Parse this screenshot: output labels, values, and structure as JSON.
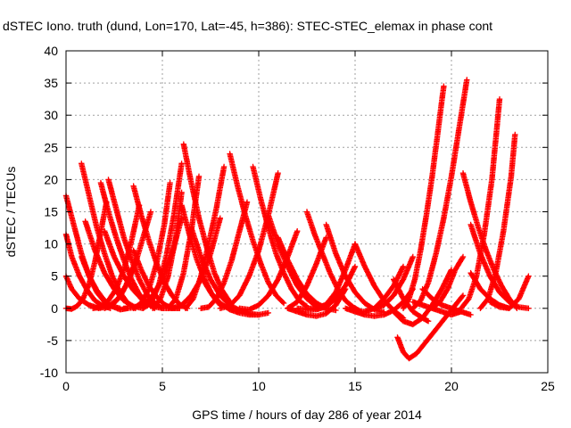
{
  "chart_data": {
    "type": "scatter",
    "title": "dSTEC Iono. truth (dund, Lon=170, Lat=-45, h=386): STEC-STEC_elemax in phase cont",
    "xlabel": "GPS time / hours of day 286 of year 2014",
    "ylabel": "dSTEC  / TECUs",
    "xlim": [
      0,
      25
    ],
    "ylim": [
      -10,
      40
    ],
    "xticks": [
      0,
      5,
      10,
      15,
      20,
      25
    ],
    "yticks": [
      -10,
      -5,
      0,
      5,
      10,
      15,
      20,
      25,
      30,
      35,
      40
    ],
    "grid": true,
    "marker": "+",
    "color": "#ff0000",
    "series": [
      {
        "x": [
          0.0,
          0.4,
          0.8,
          1.2,
          1.6,
          2.0,
          2.4,
          2.8
        ],
        "y": [
          17.5,
          13.0,
          8.5,
          5.0,
          2.5,
          1.0,
          0.3,
          0.0
        ]
      },
      {
        "x": [
          0.0,
          0.3,
          0.7,
          1.1,
          1.5,
          1.9,
          2.3
        ],
        "y": [
          11.5,
          8.0,
          5.0,
          2.8,
          1.2,
          0.4,
          0.0
        ]
      },
      {
        "x": [
          0.0,
          0.3,
          0.6,
          0.9,
          1.2,
          1.5,
          1.8,
          2.1
        ],
        "y": [
          0.0,
          -0.1,
          0.4,
          1.6,
          3.8,
          7.2,
          11.8,
          16.5
        ]
      },
      {
        "x": [
          0.0,
          0.3,
          0.7,
          1.2,
          1.7,
          2.2,
          2.7,
          3.1,
          3.5
        ],
        "y": [
          5.0,
          3.0,
          1.5,
          0.5,
          0.0,
          0.3,
          1.5,
          3.5,
          6.5
        ]
      },
      {
        "x": [
          0.8,
          1.2,
          1.6,
          2.0,
          2.4,
          2.8,
          3.2,
          3.6
        ],
        "y": [
          22.5,
          17.5,
          12.5,
          8.5,
          5.0,
          2.5,
          0.8,
          0.0
        ]
      },
      {
        "x": [
          0.8,
          1.2,
          1.6,
          2.0,
          2.4,
          2.8,
          3.2
        ],
        "y": [
          8.0,
          5.0,
          2.8,
          1.2,
          0.3,
          -0.2,
          0.0
        ]
      },
      {
        "x": [
          1.0,
          1.5,
          2.0,
          2.5,
          3.0,
          3.5,
          4.0
        ],
        "y": [
          13.5,
          9.0,
          5.5,
          3.0,
          1.2,
          0.3,
          0.0
        ]
      },
      {
        "x": [
          1.4,
          1.8,
          2.2,
          2.6,
          3.0,
          3.4,
          3.8
        ],
        "y": [
          0.0,
          0.2,
          1.2,
          3.0,
          6.0,
          10.5,
          16.0
        ]
      },
      {
        "x": [
          1.8,
          2.2,
          2.6,
          3.0,
          3.4,
          3.8,
          4.2,
          4.6
        ],
        "y": [
          19.5,
          15.0,
          11.0,
          7.5,
          4.5,
          2.2,
          0.8,
          0.0
        ]
      },
      {
        "x": [
          2.0,
          2.5,
          3.0,
          3.5,
          4.0,
          4.5,
          5.0
        ],
        "y": [
          12.0,
          8.0,
          5.0,
          2.8,
          1.2,
          0.3,
          0.0
        ]
      },
      {
        "x": [
          2.2,
          2.6,
          3.0,
          3.4,
          3.8,
          4.2,
          4.6,
          5.0
        ],
        "y": [
          20.0,
          15.5,
          11.0,
          7.5,
          4.5,
          2.2,
          0.8,
          0.0
        ]
      },
      {
        "x": [
          2.0,
          2.4,
          2.8,
          3.2,
          3.6,
          4.0,
          4.4
        ],
        "y": [
          0.0,
          0.5,
          1.8,
          4.0,
          7.0,
          11.0,
          15.0
        ]
      },
      {
        "x": [
          3.5,
          3.9,
          4.3,
          4.7,
          5.1,
          5.5,
          5.9,
          6.3
        ],
        "y": [
          19.0,
          14.5,
          10.5,
          7.0,
          4.0,
          2.0,
          0.6,
          0.0
        ]
      },
      {
        "x": [
          3.5,
          3.9,
          4.3,
          4.7,
          5.1,
          5.5,
          5.9
        ],
        "y": [
          9.0,
          6.0,
          3.5,
          1.8,
          0.6,
          0.0,
          0.0
        ]
      },
      {
        "x": [
          3.0,
          3.5,
          4.0,
          4.5,
          5.0,
          5.5,
          6.0
        ],
        "y": [
          0.0,
          0.1,
          0.6,
          2.0,
          4.5,
          8.5,
          14.0
        ]
      },
      {
        "x": [
          3.5,
          3.9,
          4.3,
          4.7,
          5.1,
          5.4
        ],
        "y": [
          0.0,
          0.8,
          3.0,
          7.0,
          13.0,
          19.5
        ]
      },
      {
        "x": [
          4.0,
          4.4,
          4.8,
          5.2,
          5.6,
          6.0
        ],
        "y": [
          0.0,
          0.8,
          3.5,
          8.0,
          14.5,
          22.5
        ]
      },
      {
        "x": [
          4.5,
          4.9,
          5.3,
          5.7,
          6.0
        ],
        "y": [
          0.0,
          1.5,
          5.0,
          11.0,
          18.0
        ]
      },
      {
        "x": [
          5.3,
          5.7,
          6.1,
          6.5,
          6.9
        ],
        "y": [
          0.0,
          1.5,
          5.5,
          12.0,
          20.5
        ]
      },
      {
        "x": [
          5.0,
          5.5,
          6.0,
          6.5,
          7.0,
          7.5,
          8.0
        ],
        "y": [
          0.0,
          0.0,
          0.5,
          2.0,
          4.5,
          8.5,
          14.0
        ]
      },
      {
        "x": [
          6.1,
          6.5,
          6.9,
          7.3,
          7.7,
          8.1,
          8.5
        ],
        "y": [
          25.5,
          19.5,
          14.0,
          9.5,
          5.5,
          2.8,
          1.0
        ]
      },
      {
        "x": [
          6.0,
          6.4,
          6.8,
          7.2,
          7.6,
          8.0
        ],
        "y": [
          16.0,
          11.5,
          7.5,
          4.5,
          2.0,
          0.5
        ]
      },
      {
        "x": [
          6.2,
          6.6,
          7.0,
          7.4,
          7.8,
          8.2
        ],
        "y": [
          0.0,
          1.5,
          5.0,
          10.0,
          15.5,
          22.0
        ]
      },
      {
        "x": [
          7.0,
          7.4,
          7.8,
          8.2,
          8.6,
          9.0,
          9.4
        ],
        "y": [
          0.0,
          0.2,
          1.5,
          4.0,
          7.5,
          12.0,
          16.5
        ]
      },
      {
        "x": [
          6.5,
          7.0,
          7.5,
          8.0,
          8.5,
          9.0,
          9.5,
          10.0
        ],
        "y": [
          12.5,
          8.0,
          4.5,
          2.0,
          0.5,
          -0.3,
          -0.8,
          -1.0
        ]
      },
      {
        "x": [
          7.0,
          7.5,
          8.0,
          8.5,
          9.0,
          9.5,
          10.0,
          10.5
        ],
        "y": [
          5.0,
          2.5,
          0.8,
          -0.2,
          -0.7,
          -1.0,
          -1.0,
          -0.7
        ]
      },
      {
        "x": [
          8.5,
          8.9,
          9.3,
          9.7,
          10.1,
          10.5,
          10.9,
          11.3
        ],
        "y": [
          24.0,
          19.0,
          14.5,
          10.5,
          7.0,
          4.0,
          2.0,
          0.8
        ]
      },
      {
        "x": [
          8.0,
          8.5,
          9.0,
          9.5,
          10.0,
          10.5,
          11.0
        ],
        "y": [
          0.0,
          0.4,
          2.0,
          5.0,
          9.0,
          14.5,
          21.0
        ]
      },
      {
        "x": [
          9.0,
          9.5,
          10.0,
          10.5,
          11.0,
          11.5,
          12.0
        ],
        "y": [
          0.0,
          -0.2,
          0.5,
          2.0,
          4.5,
          8.0,
          12.0
        ]
      },
      {
        "x": [
          9.7,
          10.1,
          10.5,
          10.9,
          11.3,
          11.7,
          12.1,
          12.5
        ],
        "y": [
          22.0,
          17.0,
          12.5,
          8.5,
          5.5,
          3.0,
          1.2,
          0.3
        ]
      },
      {
        "x": [
          10.5,
          11.0,
          11.5,
          12.0,
          12.5,
          13.0,
          13.5
        ],
        "y": [
          14.5,
          10.0,
          6.5,
          3.5,
          1.5,
          0.3,
          0.0
        ]
      },
      {
        "x": [
          11.0,
          11.5,
          12.0,
          12.5,
          13.0,
          13.5,
          14.0
        ],
        "y": [
          11.0,
          7.5,
          4.5,
          2.2,
          0.8,
          0.0,
          -0.3
        ]
      },
      {
        "x": [
          11.5,
          12.0,
          12.5,
          13.0,
          13.5
        ],
        "y": [
          0.0,
          1.0,
          3.5,
          7.0,
          11.0
        ]
      },
      {
        "x": [
          11.5,
          12.0,
          12.5,
          13.0,
          13.5,
          14.0,
          14.5
        ],
        "y": [
          0.0,
          -0.5,
          -1.0,
          -1.2,
          -0.8,
          0.5,
          3.0
        ]
      },
      {
        "x": [
          12.5,
          12.9,
          13.3,
          13.7,
          14.1,
          14.5,
          14.9,
          15.3
        ],
        "y": [
          15.0,
          11.5,
          8.5,
          5.5,
          3.0,
          1.2,
          0.2,
          -0.5
        ]
      },
      {
        "x": [
          12.0,
          12.5,
          13.0,
          13.5,
          14.0,
          14.5,
          15.0
        ],
        "y": [
          0.0,
          -0.2,
          -0.2,
          0.3,
          1.5,
          3.5,
          6.5
        ]
      },
      {
        "x": [
          12.5,
          13.0,
          13.5,
          14.0,
          14.5,
          15.0
        ],
        "y": [
          0.0,
          0.0,
          0.6,
          2.5,
          6.0,
          10.0
        ]
      },
      {
        "x": [
          13.5,
          14.0,
          14.5,
          15.0,
          15.5,
          16.0,
          16.5
        ],
        "y": [
          13.0,
          8.5,
          5.0,
          2.5,
          0.8,
          -0.2,
          -0.6
        ]
      },
      {
        "x": [
          15.0,
          15.5,
          16.0,
          16.5,
          17.0,
          17.5
        ],
        "y": [
          10.0,
          6.5,
          3.5,
          1.2,
          -0.3,
          -1.5
        ]
      },
      {
        "x": [
          14.5,
          15.0,
          15.5,
          16.0,
          16.5,
          17.0,
          17.5
        ],
        "y": [
          0.0,
          -0.5,
          -0.5,
          0.0,
          1.5,
          3.5,
          6.5
        ]
      },
      {
        "x": [
          15.0,
          15.5,
          16.0,
          16.5,
          17.0,
          17.5,
          18.0
        ],
        "y": [
          -0.5,
          -1.0,
          -1.2,
          -1.0,
          -0.3,
          1.0,
          3.0
        ]
      },
      {
        "x": [
          16.0,
          16.5,
          17.0,
          17.5,
          18.0
        ],
        "y": [
          0.0,
          0.5,
          2.0,
          4.5,
          8.0
        ]
      },
      {
        "x": [
          17.2,
          17.5,
          17.8,
          18.2,
          18.6,
          19.0,
          19.4,
          19.8,
          20.2,
          20.6
        ],
        "y": [
          -4.5,
          -6.8,
          -7.8,
          -7.0,
          -5.5,
          -4.0,
          -2.5,
          -1.0,
          0.5,
          2.0
        ]
      },
      {
        "x": [
          17.0,
          17.5,
          18.0,
          18.5,
          18.8
        ],
        "y": [
          4.5,
          1.5,
          -0.5,
          -1.5,
          -2.0
        ]
      },
      {
        "x": [
          17.0,
          17.5,
          18.0,
          18.5,
          19.0,
          19.5,
          20.0
        ],
        "y": [
          -0.5,
          -2.0,
          -2.5,
          -1.5,
          0.5,
          3.0,
          6.0
        ]
      },
      {
        "x": [
          17.5,
          17.8,
          18.1,
          18.4,
          18.7,
          19.0,
          19.3,
          19.6
        ],
        "y": [
          0.0,
          1.5,
          4.5,
          9.0,
          14.5,
          20.5,
          27.5,
          34.5
        ]
      },
      {
        "x": [
          18.0,
          18.4,
          18.8,
          19.2,
          19.6,
          20.0,
          20.4,
          20.8
        ],
        "y": [
          0.0,
          1.2,
          4.0,
          8.5,
          14.0,
          20.5,
          28.0,
          35.5
        ]
      },
      {
        "x": [
          18.0,
          18.5,
          19.0,
          19.5,
          20.0,
          20.5
        ],
        "y": [
          1.0,
          0.5,
          0.0,
          -0.5,
          -1.0,
          -0.5
        ]
      },
      {
        "x": [
          18.5,
          19.0,
          19.5,
          20.0,
          20.5,
          21.0
        ],
        "y": [
          3.0,
          1.5,
          0.5,
          0.0,
          -0.5,
          -1.0
        ]
      },
      {
        "x": [
          19.0,
          19.4,
          19.8,
          20.2,
          20.6
        ],
        "y": [
          0.0,
          1.0,
          3.0,
          6.0,
          8.0
        ]
      },
      {
        "x": [
          20.6,
          21.0,
          21.4,
          21.8,
          22.2,
          22.6,
          23.0,
          23.4
        ],
        "y": [
          21.0,
          16.5,
          12.5,
          9.0,
          6.0,
          3.5,
          1.5,
          0.0
        ]
      },
      {
        "x": [
          20.5,
          20.9,
          21.3,
          21.7,
          22.1,
          22.5
        ],
        "y": [
          0.0,
          1.5,
          5.0,
          11.5,
          20.0,
          32.5
        ]
      },
      {
        "x": [
          21.0,
          21.5,
          22.0,
          22.5,
          23.0,
          23.5,
          24.0
        ],
        "y": [
          13.0,
          8.5,
          5.0,
          2.5,
          1.0,
          0.2,
          0.0
        ]
      },
      {
        "x": [
          21.5,
          21.9,
          22.3,
          22.7,
          23.1,
          23.3
        ],
        "y": [
          0.0,
          1.5,
          5.5,
          12.0,
          20.5,
          27.0
        ]
      },
      {
        "x": [
          22.0,
          22.5,
          23.0,
          23.5,
          24.0
        ],
        "y": [
          1.0,
          0.2,
          0.0,
          1.5,
          5.0
        ]
      },
      {
        "x": [
          21.0,
          21.5,
          22.0,
          22.5,
          23.0
        ],
        "y": [
          5.5,
          3.0,
          1.5,
          0.5,
          0.0
        ]
      }
    ]
  }
}
